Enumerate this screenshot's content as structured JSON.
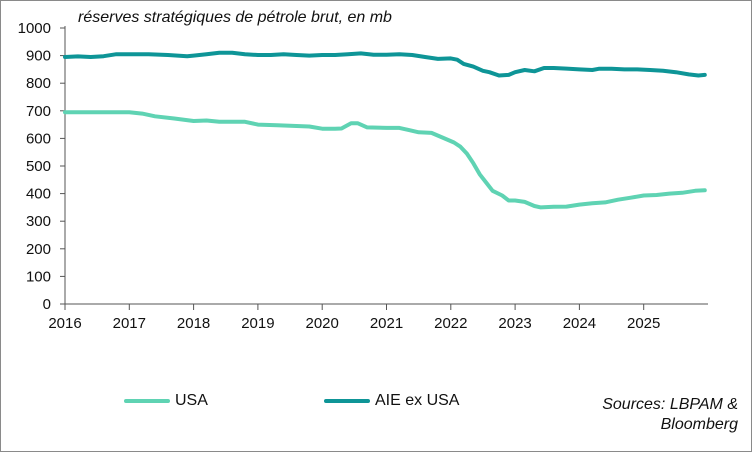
{
  "chart_data": {
    "type": "line",
    "subtitle": "réserves stratégiques de pétrole brut, en mb",
    "ylim": [
      0,
      1000
    ],
    "yticks": [
      0,
      100,
      200,
      300,
      400,
      500,
      600,
      700,
      800,
      900,
      1000
    ],
    "xlim": [
      2016,
      2026
    ],
    "xticks": [
      "2016",
      "2017",
      "2018",
      "2019",
      "2020",
      "2021",
      "2022",
      "2023",
      "2024",
      "2025"
    ],
    "series": [
      {
        "name": "USA",
        "color": "#5fd3b3",
        "points": [
          [
            2016.0,
            695
          ],
          [
            2016.5,
            695
          ],
          [
            2017.0,
            695
          ],
          [
            2017.2,
            690
          ],
          [
            2017.4,
            680
          ],
          [
            2017.7,
            672
          ],
          [
            2018.0,
            663
          ],
          [
            2018.2,
            665
          ],
          [
            2018.4,
            660
          ],
          [
            2018.8,
            660
          ],
          [
            2019.0,
            650
          ],
          [
            2019.3,
            648
          ],
          [
            2019.6,
            645
          ],
          [
            2019.8,
            643
          ],
          [
            2020.0,
            635
          ],
          [
            2020.2,
            635
          ],
          [
            2020.3,
            636
          ],
          [
            2020.45,
            655
          ],
          [
            2020.55,
            655
          ],
          [
            2020.7,
            640
          ],
          [
            2021.0,
            638
          ],
          [
            2021.2,
            638
          ],
          [
            2021.35,
            630
          ],
          [
            2021.5,
            622
          ],
          [
            2021.7,
            620
          ],
          [
            2021.9,
            600
          ],
          [
            2022.05,
            585
          ],
          [
            2022.15,
            570
          ],
          [
            2022.25,
            545
          ],
          [
            2022.35,
            510
          ],
          [
            2022.45,
            470
          ],
          [
            2022.55,
            440
          ],
          [
            2022.65,
            410
          ],
          [
            2022.8,
            393
          ],
          [
            2022.9,
            375
          ],
          [
            2023.0,
            375
          ],
          [
            2023.15,
            370
          ],
          [
            2023.3,
            355
          ],
          [
            2023.4,
            350
          ],
          [
            2023.6,
            352
          ],
          [
            2023.8,
            353
          ],
          [
            2024.0,
            360
          ],
          [
            2024.2,
            365
          ],
          [
            2024.4,
            368
          ],
          [
            2024.6,
            378
          ],
          [
            2024.8,
            385
          ],
          [
            2025.0,
            393
          ],
          [
            2025.2,
            395
          ],
          [
            2025.4,
            400
          ],
          [
            2025.6,
            403
          ],
          [
            2025.8,
            410
          ],
          [
            2025.95,
            412
          ]
        ]
      },
      {
        "name": "AIE ex USA",
        "color": "#0e9597",
        "points": [
          [
            2016.0,
            895
          ],
          [
            2016.2,
            897
          ],
          [
            2016.4,
            895
          ],
          [
            2016.6,
            898
          ],
          [
            2016.8,
            905
          ],
          [
            2017.0,
            905
          ],
          [
            2017.3,
            905
          ],
          [
            2017.6,
            902
          ],
          [
            2017.9,
            898
          ],
          [
            2018.0,
            900
          ],
          [
            2018.2,
            905
          ],
          [
            2018.4,
            910
          ],
          [
            2018.6,
            910
          ],
          [
            2018.8,
            905
          ],
          [
            2019.0,
            902
          ],
          [
            2019.2,
            902
          ],
          [
            2019.4,
            905
          ],
          [
            2019.6,
            902
          ],
          [
            2019.8,
            900
          ],
          [
            2020.0,
            902
          ],
          [
            2020.2,
            902
          ],
          [
            2020.4,
            905
          ],
          [
            2020.6,
            908
          ],
          [
            2020.8,
            903
          ],
          [
            2021.0,
            903
          ],
          [
            2021.2,
            905
          ],
          [
            2021.4,
            902
          ],
          [
            2021.6,
            895
          ],
          [
            2021.8,
            888
          ],
          [
            2022.0,
            890
          ],
          [
            2022.1,
            885
          ],
          [
            2022.2,
            870
          ],
          [
            2022.35,
            860
          ],
          [
            2022.5,
            845
          ],
          [
            2022.6,
            840
          ],
          [
            2022.75,
            828
          ],
          [
            2022.9,
            830
          ],
          [
            2023.0,
            840
          ],
          [
            2023.15,
            848
          ],
          [
            2023.3,
            843
          ],
          [
            2023.45,
            855
          ],
          [
            2023.6,
            855
          ],
          [
            2023.8,
            853
          ],
          [
            2024.0,
            850
          ],
          [
            2024.2,
            848
          ],
          [
            2024.3,
            852
          ],
          [
            2024.5,
            852
          ],
          [
            2024.7,
            850
          ],
          [
            2024.9,
            850
          ],
          [
            2025.1,
            848
          ],
          [
            2025.3,
            845
          ],
          [
            2025.5,
            840
          ],
          [
            2025.7,
            832
          ],
          [
            2025.85,
            828
          ],
          [
            2025.95,
            830
          ]
        ]
      }
    ],
    "source": [
      "Sources: LBPAM &",
      "Bloomberg"
    ]
  }
}
